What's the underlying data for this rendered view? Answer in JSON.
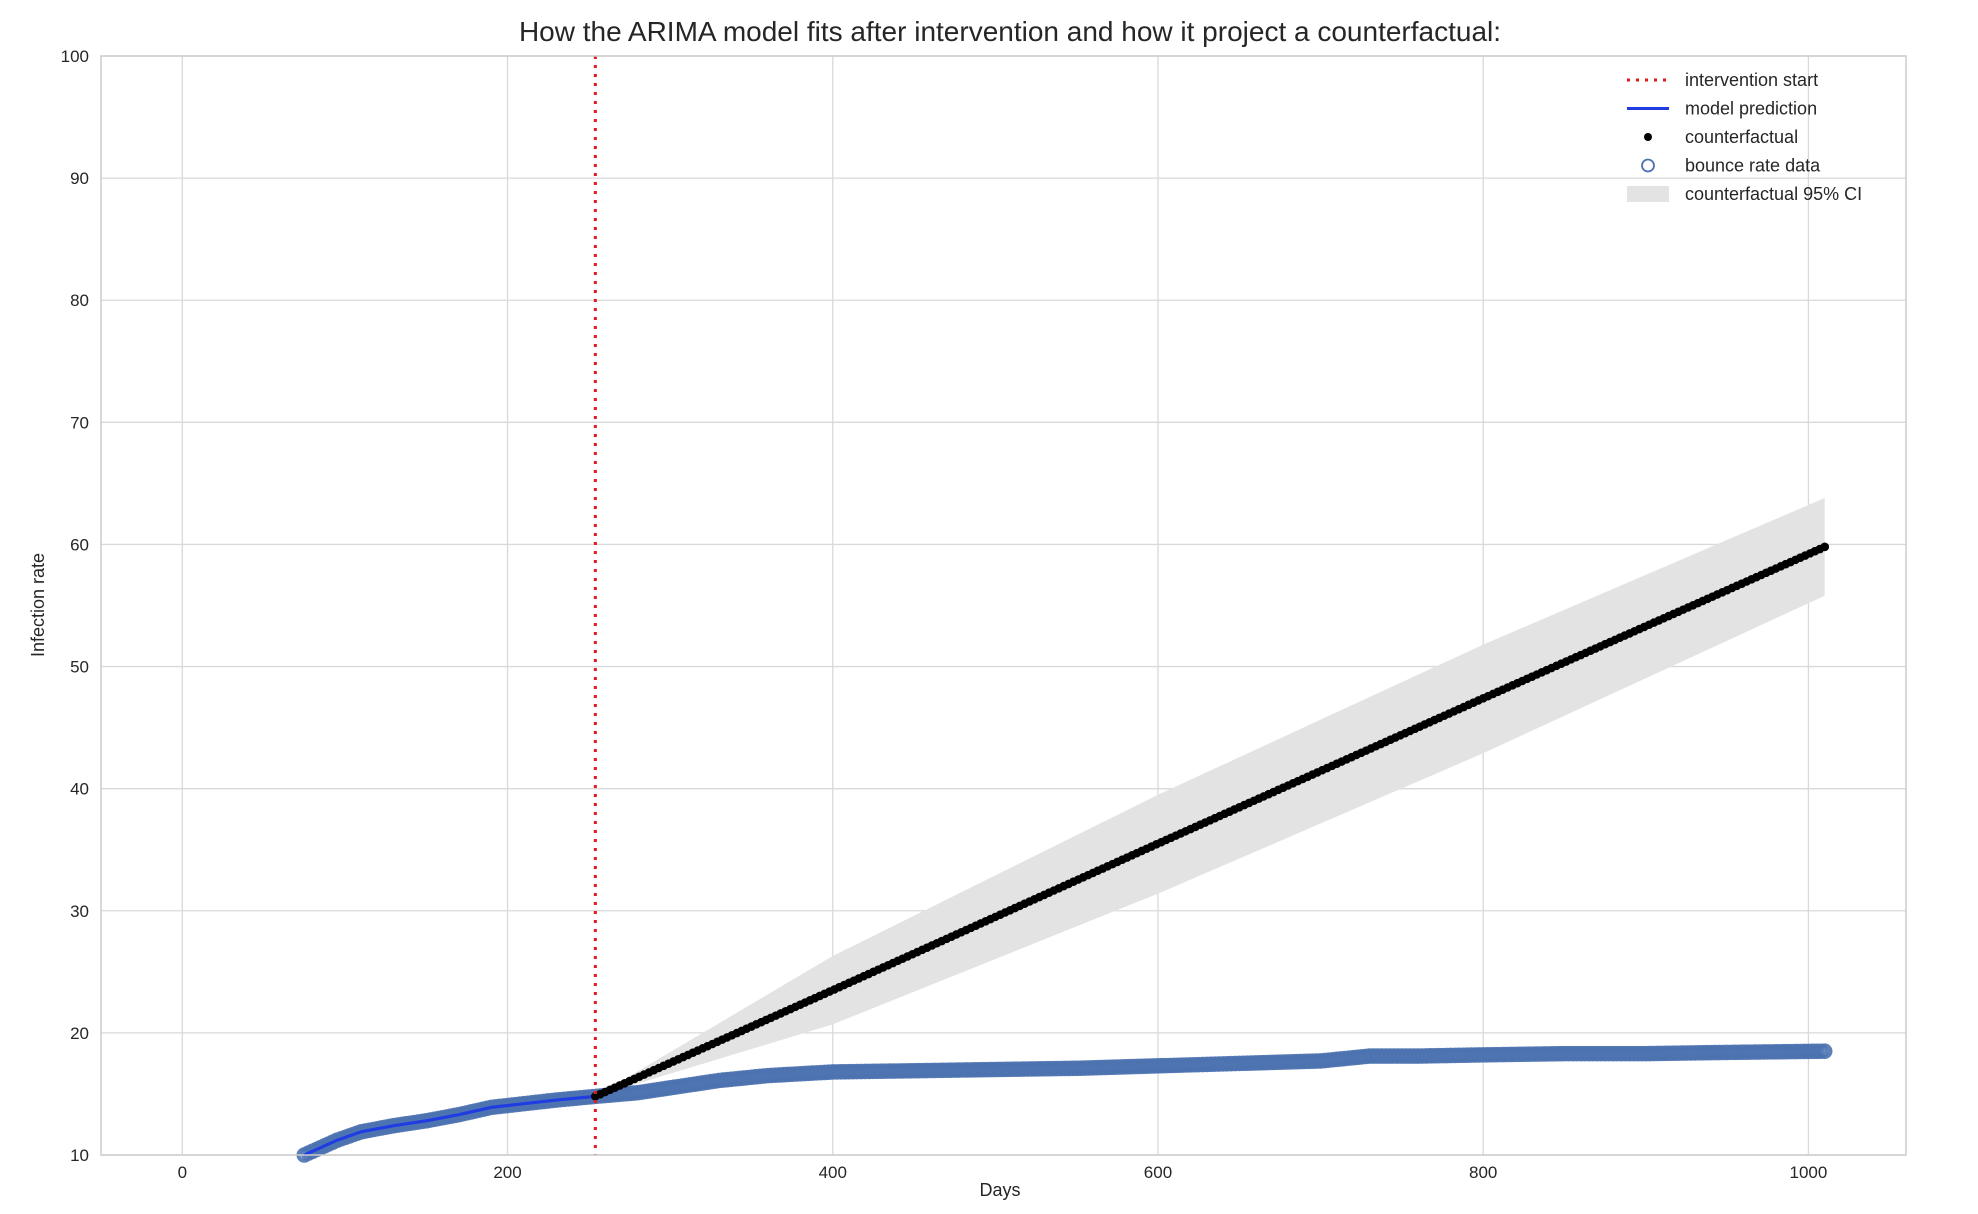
{
  "chart_data": {
    "type": "line",
    "title": "How the ARIMA model fits after intervention and how it project a counterfactual:",
    "xlabel": "Days",
    "ylabel": "Infection rate",
    "xlim": [
      -50,
      1060
    ],
    "ylim": [
      10,
      100
    ],
    "xticks": [
      0,
      200,
      400,
      600,
      800,
      1000
    ],
    "yticks": [
      10,
      20,
      30,
      40,
      50,
      60,
      70,
      80,
      90,
      100
    ],
    "grid": true,
    "legend_position": "top-right",
    "intervention_start_x": 254,
    "series": [
      {
        "name": "bounce rate data",
        "style": "open-circle markers (dense)",
        "color": "#4c72b0",
        "x": [
          75,
          85,
          95,
          110,
          130,
          150,
          170,
          190,
          210,
          230,
          254,
          280,
          300,
          330,
          360,
          400,
          450,
          500,
          550,
          600,
          650,
          700,
          730,
          760,
          800,
          850,
          900,
          950,
          1010
        ],
        "y": [
          10.0,
          10.6,
          11.2,
          11.9,
          12.4,
          12.8,
          13.3,
          13.9,
          14.2,
          14.5,
          14.8,
          15.1,
          15.5,
          16.1,
          16.5,
          16.8,
          16.9,
          17.0,
          17.1,
          17.3,
          17.5,
          17.7,
          18.1,
          18.1,
          18.2,
          18.3,
          18.3,
          18.4,
          18.5
        ]
      },
      {
        "name": "model prediction",
        "style": "solid line",
        "color": "#1f3de0",
        "x": [
          75,
          85,
          95,
          110,
          130,
          150,
          170,
          190,
          210,
          230,
          254
        ],
        "y": [
          10.0,
          10.6,
          11.2,
          11.9,
          12.4,
          12.8,
          13.3,
          13.9,
          14.2,
          14.5,
          14.8
        ]
      },
      {
        "name": "counterfactual",
        "style": "filled dot markers (dense)",
        "color": "#000000",
        "x": [
          254,
          400,
          600,
          800,
          1010
        ],
        "y": [
          14.8,
          23.5,
          35.5,
          47.4,
          59.8
        ]
      },
      {
        "name": "counterfactual 95% CI",
        "style": "shaded band",
        "color": "#e3e3e3",
        "x": [
          254,
          400,
          600,
          800,
          1010
        ],
        "lower": [
          14.8,
          20.7,
          31.4,
          42.9,
          55.8
        ],
        "upper": [
          14.8,
          26.3,
          39.5,
          51.8,
          63.8
        ]
      }
    ],
    "legend": [
      "intervention start",
      "model prediction",
      "counterfactual",
      "bounce rate data",
      "counterfactual 95% CI"
    ]
  }
}
